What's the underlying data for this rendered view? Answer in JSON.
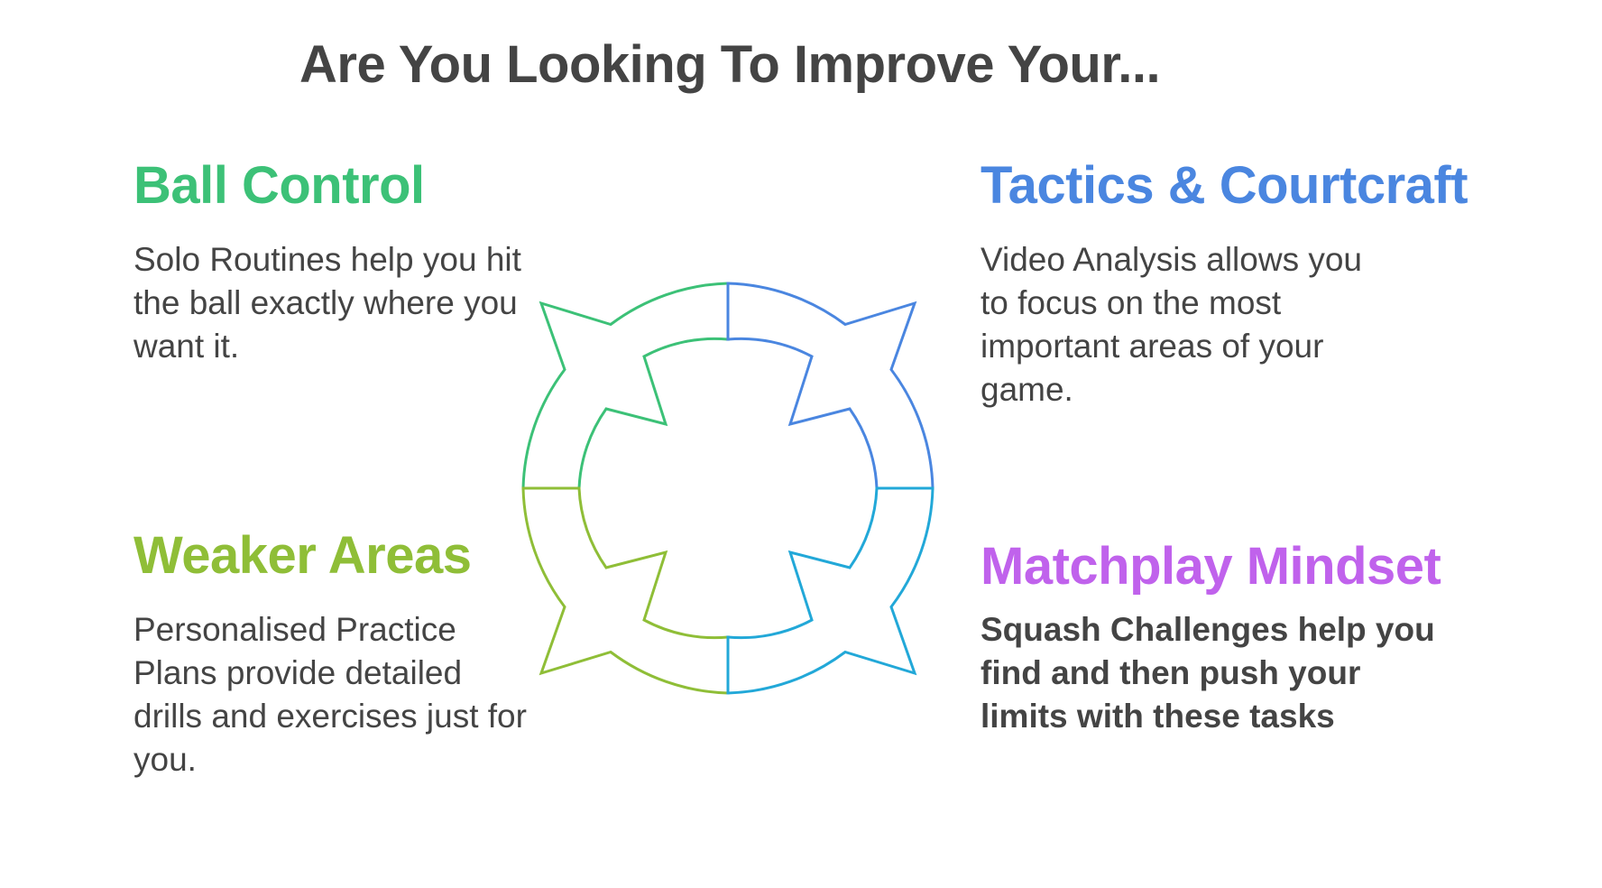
{
  "title": "Are You Looking To Improve Your...",
  "quadrants": {
    "top_left": {
      "heading": "Ball Control",
      "text": "Solo Routines help you hit the ball exactly where you want it.",
      "color": "#3cc177"
    },
    "top_right": {
      "heading": "Tactics & Courtcraft",
      "text": "Video Analysis allows you to focus on the most important areas of your game.",
      "color": "#4a86e0"
    },
    "bottom_left": {
      "heading": "Weaker Areas",
      "text": "Personalised Practice Plans provide detailed drills and exercises just for you.",
      "color": "#8fbe37"
    },
    "bottom_right": {
      "heading": "Matchplay Mindset",
      "text": "Squash Challenges help you find and then push your limits with these tasks",
      "color": "#c062ec",
      "segment_color": "#22a8d8"
    }
  }
}
